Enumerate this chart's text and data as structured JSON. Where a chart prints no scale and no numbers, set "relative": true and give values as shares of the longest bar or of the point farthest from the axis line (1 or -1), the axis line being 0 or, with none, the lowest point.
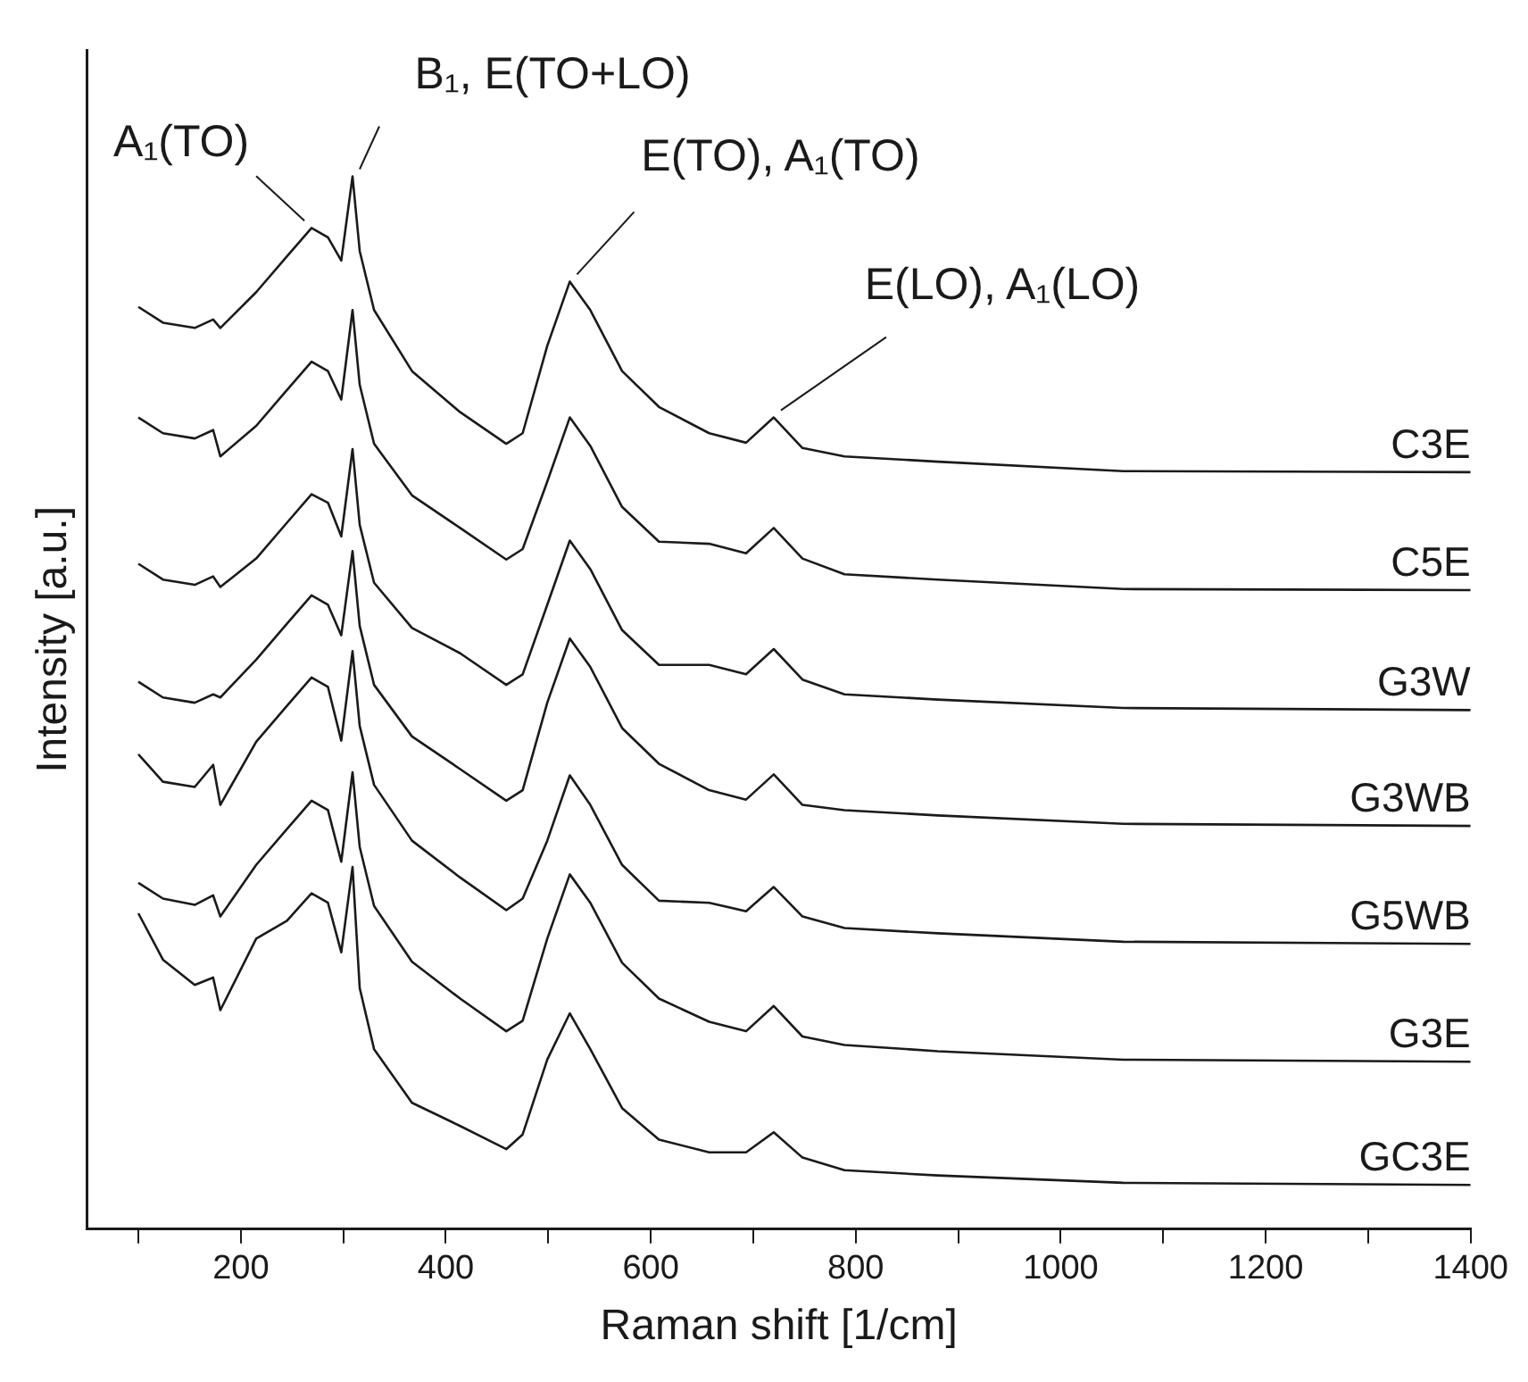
{
  "chart_data": {
    "type": "line",
    "relative": true,
    "xlabel": "Raman shift [1/cm]",
    "ylabel": "Intensity [a.u.]",
    "x": [
      100,
      124,
      155,
      173,
      180,
      215,
      245,
      269,
      285,
      298,
      309,
      316,
      330,
      367,
      414,
      459,
      475,
      499,
      521,
      541,
      572,
      608,
      657,
      693,
      720,
      748,
      789,
      880,
      1061,
      1400
    ],
    "xlim": [
      50,
      1400
    ],
    "xticks": [
      {
        "value": 100,
        "label": null
      },
      200,
      {
        "value": 300,
        "label": null
      },
      400,
      {
        "value": 500,
        "label": null
      },
      600,
      {
        "value": 700,
        "label": null
      },
      800,
      {
        "value": 900,
        "label": null
      },
      1000,
      {
        "value": 1100,
        "label": null
      },
      1200,
      {
        "value": 1300,
        "label": null
      },
      1400
    ],
    "grid": false,
    "legend": false,
    "marker": "none",
    "line_style": "solid",
    "annotations": [
      {
        "text": "A₁(TO)",
        "x": 269,
        "y": 0.951
      },
      {
        "text": "B₁, E(TO+LO)",
        "x": 309,
        "y": 1.0
      },
      {
        "text": "E(TO), A₁(TO)",
        "x": 521,
        "y": 0.9
      },
      {
        "text": "E(LO), A₁(LO)",
        "x": 720,
        "y": 0.771
      }
    ],
    "series": [
      {
        "name": "C3E",
        "color": "#1a1a1a",
        "values": [
          0.876,
          0.861,
          0.856,
          0.864,
          0.856,
          0.89,
          0.924,
          0.951,
          0.942,
          0.92,
          1.0,
          0.929,
          0.873,
          0.815,
          0.776,
          0.746,
          0.756,
          0.839,
          0.9,
          0.873,
          0.815,
          0.781,
          0.756,
          0.747,
          0.771,
          0.742,
          0.734,
          0.729,
          0.72,
          0.719
        ]
      },
      {
        "name": "C5E",
        "color": "#1a1a1a",
        "values": [
          0.771,
          0.756,
          0.751,
          0.759,
          0.734,
          0.763,
          0.797,
          0.824,
          0.815,
          0.788,
          0.873,
          0.802,
          0.746,
          0.697,
          0.666,
          0.636,
          0.646,
          0.71,
          0.771,
          0.744,
          0.686,
          0.653,
          0.651,
          0.642,
          0.666,
          0.637,
          0.622,
          0.617,
          0.608,
          0.607
        ]
      },
      {
        "name": "G3W",
        "color": "#1a1a1a",
        "values": [
          0.632,
          0.617,
          0.612,
          0.62,
          0.61,
          0.637,
          0.671,
          0.698,
          0.69,
          0.658,
          0.741,
          0.669,
          0.614,
          0.571,
          0.547,
          0.517,
          0.527,
          0.593,
          0.654,
          0.627,
          0.569,
          0.536,
          0.536,
          0.527,
          0.551,
          0.522,
          0.508,
          0.503,
          0.495,
          0.493
        ]
      },
      {
        "name": "G3WB",
        "color": "#1a1a1a",
        "values": [
          0.52,
          0.505,
          0.5,
          0.508,
          0.505,
          0.541,
          0.575,
          0.602,
          0.593,
          0.564,
          0.644,
          0.573,
          0.517,
          0.468,
          0.437,
          0.407,
          0.417,
          0.5,
          0.561,
          0.534,
          0.476,
          0.442,
          0.417,
          0.408,
          0.432,
          0.403,
          0.398,
          0.393,
          0.385,
          0.383
        ]
      },
      {
        "name": "G5WB",
        "color": "#1a1a1a",
        "values": [
          0.451,
          0.425,
          0.42,
          0.441,
          0.403,
          0.463,
          0.497,
          0.524,
          0.515,
          0.464,
          0.549,
          0.478,
          0.422,
          0.369,
          0.334,
          0.303,
          0.314,
          0.369,
          0.431,
          0.403,
          0.346,
          0.312,
          0.31,
          0.302,
          0.325,
          0.297,
          0.286,
          0.281,
          0.273,
          0.271
        ]
      },
      {
        "name": "G3E",
        "color": "#1a1a1a",
        "values": [
          0.329,
          0.314,
          0.308,
          0.317,
          0.297,
          0.346,
          0.38,
          0.407,
          0.398,
          0.349,
          0.434,
          0.363,
          0.307,
          0.254,
          0.219,
          0.188,
          0.198,
          0.276,
          0.337,
          0.31,
          0.253,
          0.219,
          0.197,
          0.188,
          0.212,
          0.183,
          0.175,
          0.169,
          0.161,
          0.159
        ]
      },
      {
        "name": "GC3E",
        "color": "#1a1a1a",
        "values": [
          0.3,
          0.256,
          0.232,
          0.239,
          0.208,
          0.276,
          0.293,
          0.319,
          0.31,
          0.263,
          0.344,
          0.229,
          0.171,
          0.12,
          0.098,
          0.076,
          0.09,
          0.161,
          0.205,
          0.171,
          0.115,
          0.085,
          0.073,
          0.073,
          0.092,
          0.068,
          0.056,
          0.051,
          0.044,
          0.042
        ]
      }
    ]
  }
}
